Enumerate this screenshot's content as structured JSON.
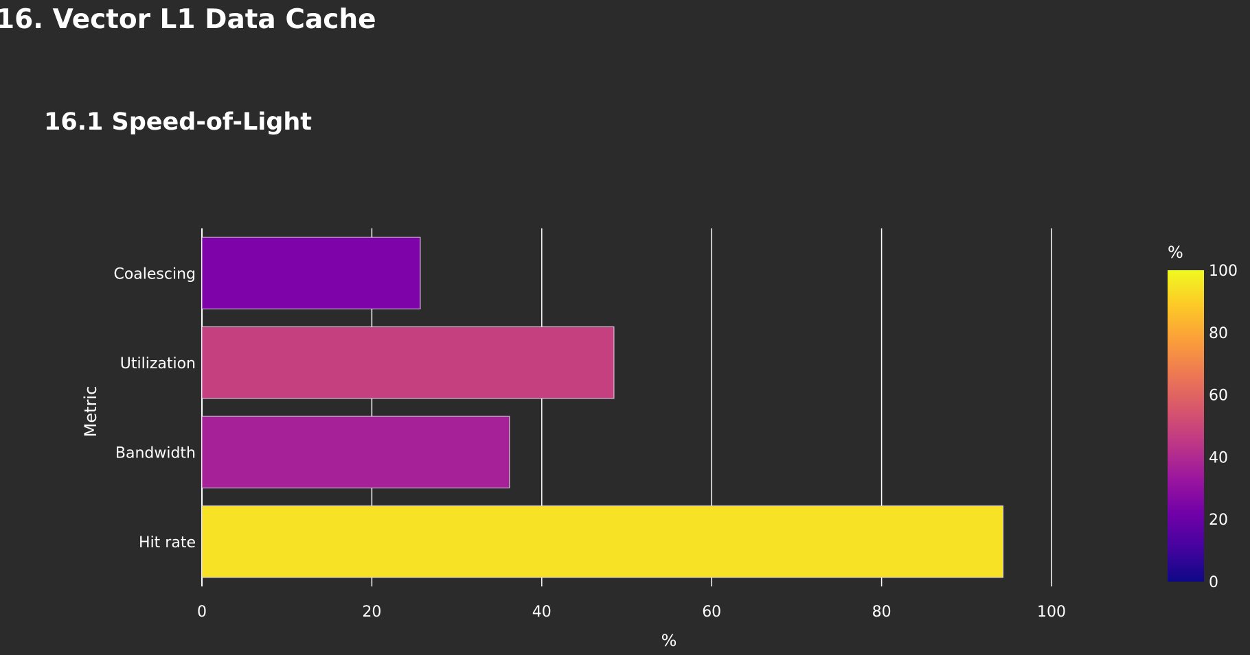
{
  "page": {
    "section_title": "16. Vector L1 Data Cache",
    "subsection_title": "16.1 Speed-of-Light"
  },
  "colors": {
    "background": "#2b2b2b",
    "gridline": "#ffffff",
    "text": "#ffffff",
    "bar_outline": "#e8d8ee"
  },
  "chart_data": {
    "type": "bar",
    "orientation": "horizontal",
    "categories": [
      "Coalescing",
      "Utilization",
      "Bandwidth",
      "Hit rate"
    ],
    "values": [
      25.7,
      48.5,
      36.2,
      94.3
    ],
    "bar_colors": [
      "#7e03a8",
      "#c5407e",
      "#a62098",
      "#f7e225"
    ],
    "xlabel": "%",
    "ylabel": "Metric",
    "xlim": [
      0,
      118
    ],
    "xticks": [
      0,
      20,
      40,
      60,
      80,
      100
    ],
    "grid": "vertical",
    "colorbar": {
      "title": "%",
      "range": [
        0,
        100
      ],
      "ticks": [
        0,
        20,
        40,
        60,
        80,
        100
      ],
      "colorscale": "plasma",
      "stops": [
        "#0d0887",
        "#46039f",
        "#7201a8",
        "#9c179e",
        "#bd3786",
        "#d8576b",
        "#ed7953",
        "#fb9f3a",
        "#fdca26",
        "#f0f921"
      ]
    }
  }
}
